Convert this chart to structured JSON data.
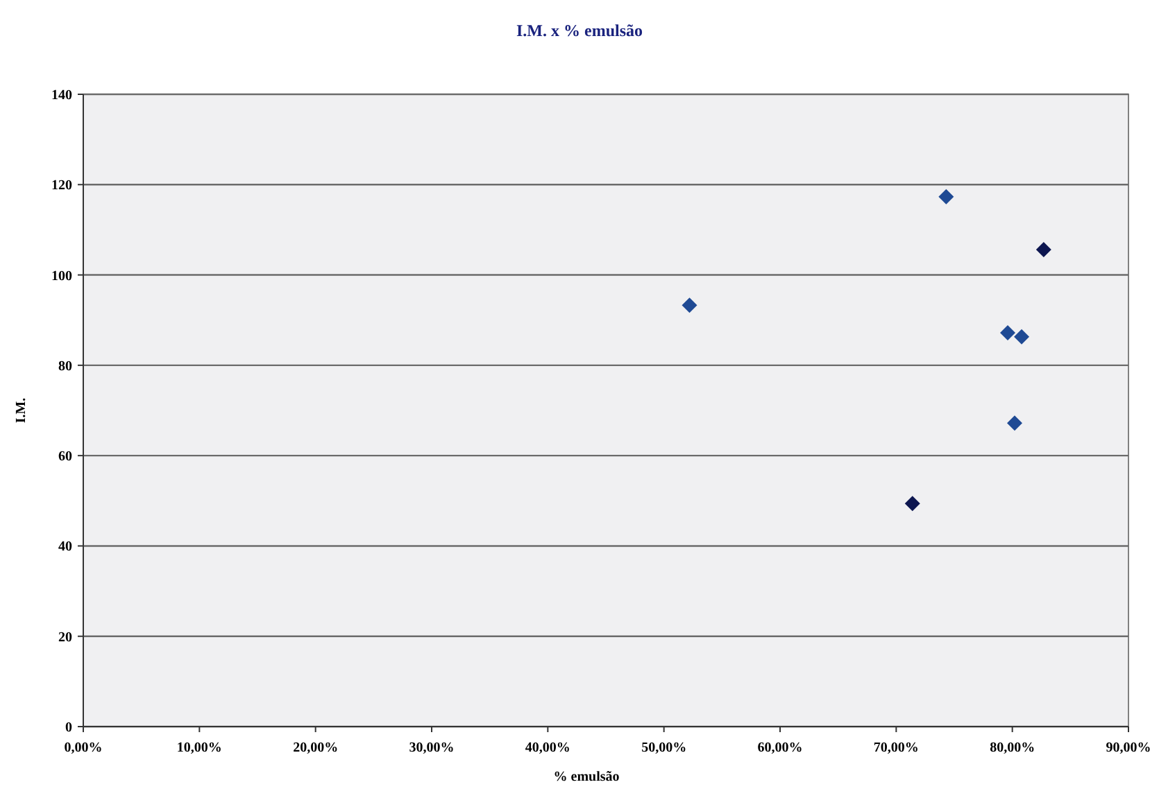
{
  "chart_data": {
    "type": "scatter",
    "title": "I.M. x % emulsão",
    "xlabel": "% emulsão",
    "ylabel": "I.M.",
    "x": [
      52.2,
      74.3,
      82.7,
      79.6,
      80.8,
      80.2,
      71.4
    ],
    "values": [
      93.3,
      117.3,
      105.6,
      87.2,
      86.3,
      67.2,
      49.4
    ],
    "colors": [
      "#1f4a94",
      "#1f4a94",
      "#0d1650",
      "#1f4a94",
      "#1f4a94",
      "#1f4a94",
      "#0d1650"
    ],
    "xlim": [
      0,
      90
    ],
    "xticks": [
      {
        "value": 0,
        "label": "0,00%"
      },
      {
        "value": 10,
        "label": "10,00%"
      },
      {
        "value": 20,
        "label": "20,00%"
      },
      {
        "value": 30,
        "label": "30,00%"
      },
      {
        "value": 40,
        "label": "40,00%"
      },
      {
        "value": 50,
        "label": "50,00%"
      },
      {
        "value": 60,
        "label": "60,00%"
      },
      {
        "value": 70,
        "label": "70,00%"
      },
      {
        "value": 80,
        "label": "80,00%"
      },
      {
        "value": 90,
        "label": "90,00%"
      }
    ],
    "ylim": [
      0,
      140
    ],
    "yticks": [
      0,
      20,
      40,
      60,
      80,
      100,
      120,
      140
    ],
    "grid": "y",
    "marker": "diamond"
  }
}
